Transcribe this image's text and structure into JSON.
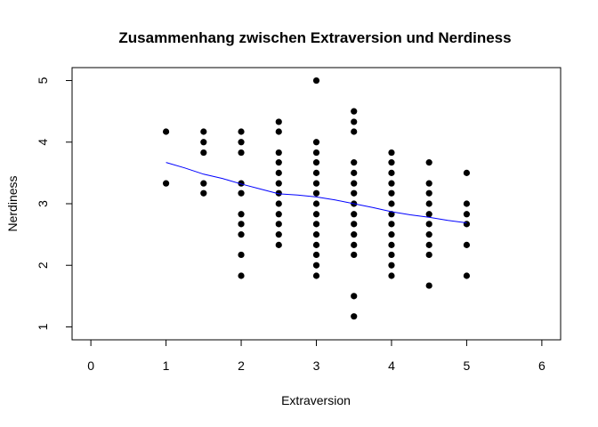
{
  "chart_data": {
    "type": "scatter",
    "title": "Zusammenhang zwischen Extraversion und Nerdiness",
    "xlabel": "Extraversion",
    "ylabel": "Nerdiness",
    "xlim": [
      -0.25,
      6.25
    ],
    "ylim": [
      0.79,
      5.21
    ],
    "xticks": [
      "0",
      "1",
      "2",
      "3",
      "4",
      "5",
      "6"
    ],
    "yticks": [
      "1",
      "2",
      "3",
      "4",
      "5"
    ],
    "grid": false,
    "colors": {
      "points": "#000000",
      "trend": "#0000ff",
      "frame": "#000000"
    },
    "points": [
      {
        "x": 1,
        "y": 4.17
      },
      {
        "x": 1,
        "y": 3.33
      },
      {
        "x": 1.5,
        "y": 4.17
      },
      {
        "x": 1.5,
        "y": 4.0
      },
      {
        "x": 1.5,
        "y": 3.83
      },
      {
        "x": 1.5,
        "y": 3.33
      },
      {
        "x": 1.5,
        "y": 3.17
      },
      {
        "x": 2,
        "y": 4.17
      },
      {
        "x": 2,
        "y": 4.0
      },
      {
        "x": 2,
        "y": 3.83
      },
      {
        "x": 2,
        "y": 3.33
      },
      {
        "x": 2,
        "y": 3.17
      },
      {
        "x": 2,
        "y": 2.83
      },
      {
        "x": 2,
        "y": 2.67
      },
      {
        "x": 2,
        "y": 2.5
      },
      {
        "x": 2,
        "y": 2.17
      },
      {
        "x": 2,
        "y": 1.83
      },
      {
        "x": 2.5,
        "y": 4.33
      },
      {
        "x": 2.5,
        "y": 4.17
      },
      {
        "x": 2.5,
        "y": 3.83
      },
      {
        "x": 2.5,
        "y": 3.67
      },
      {
        "x": 2.5,
        "y": 3.5
      },
      {
        "x": 2.5,
        "y": 3.33
      },
      {
        "x": 2.5,
        "y": 3.17
      },
      {
        "x": 2.5,
        "y": 3.0
      },
      {
        "x": 2.5,
        "y": 2.83
      },
      {
        "x": 2.5,
        "y": 2.67
      },
      {
        "x": 2.5,
        "y": 2.5
      },
      {
        "x": 2.5,
        "y": 2.33
      },
      {
        "x": 3,
        "y": 5.0
      },
      {
        "x": 3,
        "y": 4.0
      },
      {
        "x": 3,
        "y": 3.83
      },
      {
        "x": 3,
        "y": 3.67
      },
      {
        "x": 3,
        "y": 3.5
      },
      {
        "x": 3,
        "y": 3.33
      },
      {
        "x": 3,
        "y": 3.17
      },
      {
        "x": 3,
        "y": 3.0
      },
      {
        "x": 3,
        "y": 2.83
      },
      {
        "x": 3,
        "y": 2.67
      },
      {
        "x": 3,
        "y": 2.5
      },
      {
        "x": 3,
        "y": 2.33
      },
      {
        "x": 3,
        "y": 2.17
      },
      {
        "x": 3,
        "y": 2.0
      },
      {
        "x": 3,
        "y": 1.83
      },
      {
        "x": 3.5,
        "y": 4.5
      },
      {
        "x": 3.5,
        "y": 4.33
      },
      {
        "x": 3.5,
        "y": 4.17
      },
      {
        "x": 3.5,
        "y": 3.67
      },
      {
        "x": 3.5,
        "y": 3.5
      },
      {
        "x": 3.5,
        "y": 3.33
      },
      {
        "x": 3.5,
        "y": 3.17
      },
      {
        "x": 3.5,
        "y": 3.0
      },
      {
        "x": 3.5,
        "y": 2.83
      },
      {
        "x": 3.5,
        "y": 2.67
      },
      {
        "x": 3.5,
        "y": 2.5
      },
      {
        "x": 3.5,
        "y": 2.33
      },
      {
        "x": 3.5,
        "y": 2.17
      },
      {
        "x": 3.5,
        "y": 1.5
      },
      {
        "x": 3.5,
        "y": 1.17
      },
      {
        "x": 4,
        "y": 3.83
      },
      {
        "x": 4,
        "y": 3.67
      },
      {
        "x": 4,
        "y": 3.5
      },
      {
        "x": 4,
        "y": 3.33
      },
      {
        "x": 4,
        "y": 3.17
      },
      {
        "x": 4,
        "y": 3.0
      },
      {
        "x": 4,
        "y": 2.83
      },
      {
        "x": 4,
        "y": 2.67
      },
      {
        "x": 4,
        "y": 2.5
      },
      {
        "x": 4,
        "y": 2.33
      },
      {
        "x": 4,
        "y": 2.17
      },
      {
        "x": 4,
        "y": 2.0
      },
      {
        "x": 4,
        "y": 1.83
      },
      {
        "x": 4.5,
        "y": 3.67
      },
      {
        "x": 4.5,
        "y": 3.33
      },
      {
        "x": 4.5,
        "y": 3.17
      },
      {
        "x": 4.5,
        "y": 3.0
      },
      {
        "x": 4.5,
        "y": 2.83
      },
      {
        "x": 4.5,
        "y": 2.67
      },
      {
        "x": 4.5,
        "y": 2.5
      },
      {
        "x": 4.5,
        "y": 2.33
      },
      {
        "x": 4.5,
        "y": 2.17
      },
      {
        "x": 4.5,
        "y": 1.67
      },
      {
        "x": 5,
        "y": 3.5
      },
      {
        "x": 5,
        "y": 3.0
      },
      {
        "x": 5,
        "y": 2.83
      },
      {
        "x": 5,
        "y": 2.67
      },
      {
        "x": 5,
        "y": 2.33
      },
      {
        "x": 5,
        "y": 1.83
      }
    ],
    "trend_line": [
      {
        "x": 1.0,
        "y": 3.67
      },
      {
        "x": 1.25,
        "y": 3.58
      },
      {
        "x": 1.5,
        "y": 3.48
      },
      {
        "x": 1.75,
        "y": 3.41
      },
      {
        "x": 2.0,
        "y": 3.32
      },
      {
        "x": 2.25,
        "y": 3.24
      },
      {
        "x": 2.5,
        "y": 3.16
      },
      {
        "x": 2.75,
        "y": 3.14
      },
      {
        "x": 3.0,
        "y": 3.11
      },
      {
        "x": 3.25,
        "y": 3.06
      },
      {
        "x": 3.5,
        "y": 3.0
      },
      {
        "x": 3.75,
        "y": 2.94
      },
      {
        "x": 4.0,
        "y": 2.87
      },
      {
        "x": 4.25,
        "y": 2.82
      },
      {
        "x": 4.5,
        "y": 2.78
      },
      {
        "x": 4.75,
        "y": 2.73
      },
      {
        "x": 5.0,
        "y": 2.69
      }
    ]
  }
}
